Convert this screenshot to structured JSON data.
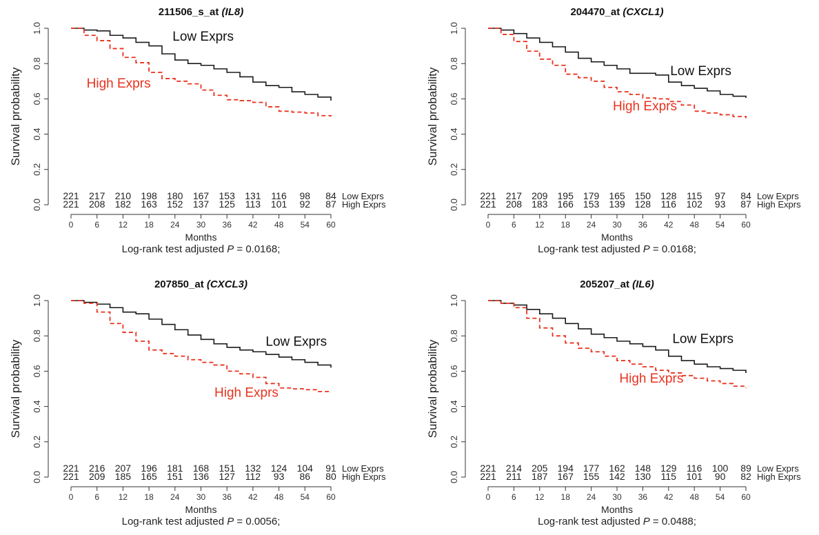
{
  "figure": {
    "colors": {
      "low": "#1a1a1a",
      "high": "#e8321e",
      "axis": "#333333"
    }
  },
  "chart_data": [
    {
      "type": "line",
      "title_id": "211506_s_at",
      "title_gene": "(IL8)",
      "xlabel": "Months",
      "ylabel": "Survival probability",
      "xlim": [
        0,
        60
      ],
      "ylim": [
        0,
        1
      ],
      "xticks": [
        0,
        6,
        12,
        18,
        24,
        30,
        36,
        42,
        48,
        54,
        60
      ],
      "yticks": [
        0.0,
        0.2,
        0.4,
        0.6,
        0.8,
        1.0
      ],
      "ytick_labels": [
        "0.0",
        "0.2",
        "0.4",
        "0.6",
        "0.8",
        "1.0"
      ],
      "pvalue_prefix": "Log-rank test adjusted",
      "pvalue_label": "P",
      "pvalue_text": "= 0.0168;",
      "series": [
        {
          "name": "Low Exprs",
          "style": "solid",
          "x": [
            0,
            3,
            6,
            9,
            12,
            15,
            18,
            21,
            24,
            27,
            30,
            33,
            36,
            39,
            42,
            45,
            48,
            51,
            54,
            57,
            60
          ],
          "y": [
            1.0,
            0.99,
            0.985,
            0.96,
            0.945,
            0.92,
            0.9,
            0.855,
            0.82,
            0.8,
            0.79,
            0.77,
            0.75,
            0.725,
            0.695,
            0.675,
            0.665,
            0.64,
            0.625,
            0.61,
            0.59
          ]
        },
        {
          "name": "High Exprs",
          "style": "dashed",
          "x": [
            0,
            3,
            6,
            9,
            12,
            15,
            18,
            21,
            24,
            27,
            30,
            33,
            36,
            39,
            42,
            45,
            48,
            51,
            54,
            57,
            60
          ],
          "y": [
            1.0,
            0.96,
            0.93,
            0.885,
            0.835,
            0.805,
            0.75,
            0.715,
            0.7,
            0.685,
            0.65,
            0.62,
            0.595,
            0.59,
            0.58,
            0.555,
            0.53,
            0.525,
            0.52,
            0.505,
            0.5
          ]
        }
      ],
      "curve_labels": [
        {
          "text": "Low Exprs",
          "series": "Low Exprs",
          "x": 30.5,
          "y": 0.93
        },
        {
          "text": "High Exprs",
          "series": "High Exprs",
          "x": 11,
          "y": 0.665
        }
      ],
      "risk_table": {
        "times": [
          0,
          6,
          12,
          18,
          24,
          30,
          36,
          42,
          48,
          54,
          60
        ],
        "rows": [
          {
            "name": "Low Exprs",
            "counts": [
              "221",
              "217",
              "210",
              "198",
              "180",
              "167",
              "153",
              "131",
              "116",
              "98",
              "84"
            ]
          },
          {
            "name": "High Exprs",
            "counts": [
              "221",
              "208",
              "182",
              "163",
              "152",
              "137",
              "125",
              "113",
              "101",
              "92",
              "87"
            ]
          }
        ]
      }
    },
    {
      "type": "line",
      "title_id": "204470_at",
      "title_gene": "(CXCL1)",
      "xlabel": "Months",
      "ylabel": "Survival probability",
      "xlim": [
        0,
        60
      ],
      "ylim": [
        0,
        1
      ],
      "xticks": [
        0,
        6,
        12,
        18,
        24,
        30,
        36,
        42,
        48,
        54,
        60
      ],
      "yticks": [
        0.0,
        0.2,
        0.4,
        0.6,
        0.8,
        1.0
      ],
      "ytick_labels": [
        "0.0",
        "0.2",
        "0.4",
        "0.6",
        "0.8",
        "1.0"
      ],
      "pvalue_prefix": "Log-rank test adjusted",
      "pvalue_label": "P",
      "pvalue_text": "= 0.0168;",
      "series": [
        {
          "name": "Low Exprs",
          "style": "solid",
          "x": [
            0,
            3,
            6,
            9,
            12,
            15,
            18,
            21,
            24,
            27,
            30,
            33,
            36,
            39,
            42,
            45,
            48,
            51,
            54,
            57,
            60
          ],
          "y": [
            1.0,
            0.99,
            0.97,
            0.945,
            0.92,
            0.895,
            0.865,
            0.83,
            0.81,
            0.79,
            0.77,
            0.745,
            0.745,
            0.735,
            0.695,
            0.675,
            0.66,
            0.645,
            0.625,
            0.615,
            0.605
          ]
        },
        {
          "name": "High Exprs",
          "style": "dashed",
          "x": [
            0,
            3,
            6,
            9,
            12,
            15,
            18,
            21,
            24,
            27,
            30,
            33,
            36,
            39,
            42,
            45,
            48,
            51,
            54,
            57,
            60
          ],
          "y": [
            1.0,
            0.965,
            0.925,
            0.87,
            0.825,
            0.79,
            0.74,
            0.72,
            0.7,
            0.665,
            0.64,
            0.625,
            0.605,
            0.6,
            0.585,
            0.565,
            0.53,
            0.52,
            0.51,
            0.5,
            0.49
          ]
        }
      ],
      "curve_labels": [
        {
          "text": "Low Exprs",
          "series": "Low Exprs",
          "x": 49.5,
          "y": 0.735
        },
        {
          "text": "High Exprs",
          "series": "High Exprs",
          "x": 36.5,
          "y": 0.535
        }
      ],
      "risk_table": {
        "times": [
          0,
          6,
          12,
          18,
          24,
          30,
          36,
          42,
          48,
          54,
          60
        ],
        "rows": [
          {
            "name": "Low Exprs",
            "counts": [
              "221",
              "217",
              "209",
              "195",
              "179",
              "165",
              "150",
              "128",
              "115",
              "97",
              "84"
            ]
          },
          {
            "name": "High Exprs",
            "counts": [
              "221",
              "208",
              "183",
              "166",
              "153",
              "139",
              "128",
              "116",
              "102",
              "93",
              "87"
            ]
          }
        ]
      }
    },
    {
      "type": "line",
      "title_id": "207850_at",
      "title_gene": "(CXCL3)",
      "xlabel": "Months",
      "ylabel": "Survival probability",
      "xlim": [
        0,
        60
      ],
      "ylim": [
        0,
        1
      ],
      "xticks": [
        0,
        6,
        12,
        18,
        24,
        30,
        36,
        42,
        48,
        54,
        60
      ],
      "yticks": [
        0.0,
        0.2,
        0.4,
        0.6,
        0.8,
        1.0
      ],
      "ytick_labels": [
        "0.0",
        "0.2",
        "0.4",
        "0.6",
        "0.8",
        "1.0"
      ],
      "pvalue_prefix": "Log-rank test adjusted",
      "pvalue_label": "P",
      "pvalue_text": "= 0.0056;",
      "series": [
        {
          "name": "Low Exprs",
          "style": "solid",
          "x": [
            0,
            3,
            6,
            9,
            12,
            15,
            18,
            21,
            24,
            27,
            30,
            33,
            36,
            39,
            42,
            45,
            48,
            51,
            54,
            57,
            60
          ],
          "y": [
            1.0,
            0.99,
            0.98,
            0.96,
            0.935,
            0.925,
            0.895,
            0.865,
            0.835,
            0.805,
            0.78,
            0.755,
            0.735,
            0.72,
            0.71,
            0.695,
            0.68,
            0.665,
            0.65,
            0.635,
            0.62
          ]
        },
        {
          "name": "High Exprs",
          "style": "dashed",
          "x": [
            0,
            3,
            6,
            9,
            12,
            15,
            18,
            21,
            24,
            27,
            30,
            33,
            36,
            39,
            42,
            45,
            48,
            51,
            54,
            57,
            60
          ],
          "y": [
            1.0,
            0.985,
            0.935,
            0.87,
            0.82,
            0.77,
            0.72,
            0.7,
            0.685,
            0.665,
            0.65,
            0.635,
            0.6,
            0.585,
            0.565,
            0.53,
            0.505,
            0.5,
            0.495,
            0.485,
            0.48
          ]
        }
      ],
      "curve_labels": [
        {
          "text": "Low Exprs",
          "series": "Low Exprs",
          "x": 52,
          "y": 0.745
        },
        {
          "text": "High Exprs",
          "series": "High Exprs",
          "x": 40.5,
          "y": 0.455
        }
      ],
      "risk_table": {
        "times": [
          0,
          6,
          12,
          18,
          24,
          30,
          36,
          42,
          48,
          54,
          60
        ],
        "rows": [
          {
            "name": "Low Exprs",
            "counts": [
              "221",
              "216",
              "207",
              "196",
              "181",
              "168",
              "151",
              "132",
              "124",
              "104",
              "91"
            ]
          },
          {
            "name": "High Exprs",
            "counts": [
              "221",
              "209",
              "185",
              "165",
              "151",
              "136",
              "127",
              "112",
              "93",
              "86",
              "80"
            ]
          }
        ]
      }
    },
    {
      "type": "line",
      "title_id": "205207_at",
      "title_gene": "(IL6)",
      "xlabel": "Months",
      "ylabel": "Survival probability",
      "xlim": [
        0,
        60
      ],
      "ylim": [
        0,
        1
      ],
      "xticks": [
        0,
        6,
        12,
        18,
        24,
        30,
        36,
        42,
        48,
        54,
        60
      ],
      "yticks": [
        0.0,
        0.2,
        0.4,
        0.6,
        0.8,
        1.0
      ],
      "ytick_labels": [
        "0.0",
        "0.2",
        "0.4",
        "0.6",
        "0.8",
        "1.0"
      ],
      "pvalue_prefix": "Log-rank test adjusted",
      "pvalue_label": "P",
      "pvalue_text": "= 0.0488;",
      "series": [
        {
          "name": "Low Exprs",
          "style": "solid",
          "x": [
            0,
            3,
            6,
            9,
            12,
            15,
            18,
            21,
            24,
            27,
            30,
            33,
            36,
            39,
            42,
            45,
            48,
            51,
            54,
            57,
            60
          ],
          "y": [
            1.0,
            0.985,
            0.975,
            0.95,
            0.925,
            0.9,
            0.87,
            0.84,
            0.81,
            0.79,
            0.77,
            0.755,
            0.74,
            0.72,
            0.685,
            0.66,
            0.64,
            0.625,
            0.615,
            0.605,
            0.59
          ]
        },
        {
          "name": "High Exprs",
          "style": "dashed",
          "x": [
            0,
            3,
            6,
            9,
            12,
            15,
            18,
            21,
            24,
            27,
            30,
            33,
            36,
            39,
            42,
            45,
            48,
            51,
            54,
            57,
            60
          ],
          "y": [
            1.0,
            0.985,
            0.96,
            0.9,
            0.845,
            0.8,
            0.76,
            0.73,
            0.71,
            0.685,
            0.66,
            0.64,
            0.625,
            0.605,
            0.59,
            0.575,
            0.56,
            0.545,
            0.53,
            0.515,
            0.505
          ]
        }
      ],
      "curve_labels": [
        {
          "text": "Low Exprs",
          "series": "Low Exprs",
          "x": 50,
          "y": 0.76
        },
        {
          "text": "High Exprs",
          "series": "High Exprs",
          "x": 38,
          "y": 0.535
        }
      ],
      "risk_table": {
        "times": [
          0,
          6,
          12,
          18,
          24,
          30,
          36,
          42,
          48,
          54,
          60
        ],
        "rows": [
          {
            "name": "Low Exprs",
            "counts": [
              "221",
              "214",
              "205",
              "194",
              "177",
              "162",
              "148",
              "129",
              "116",
              "100",
              "89"
            ]
          },
          {
            "name": "High Exprs",
            "counts": [
              "221",
              "211",
              "187",
              "167",
              "155",
              "142",
              "130",
              "115",
              "101",
              "90",
              "82"
            ]
          }
        ]
      }
    }
  ]
}
